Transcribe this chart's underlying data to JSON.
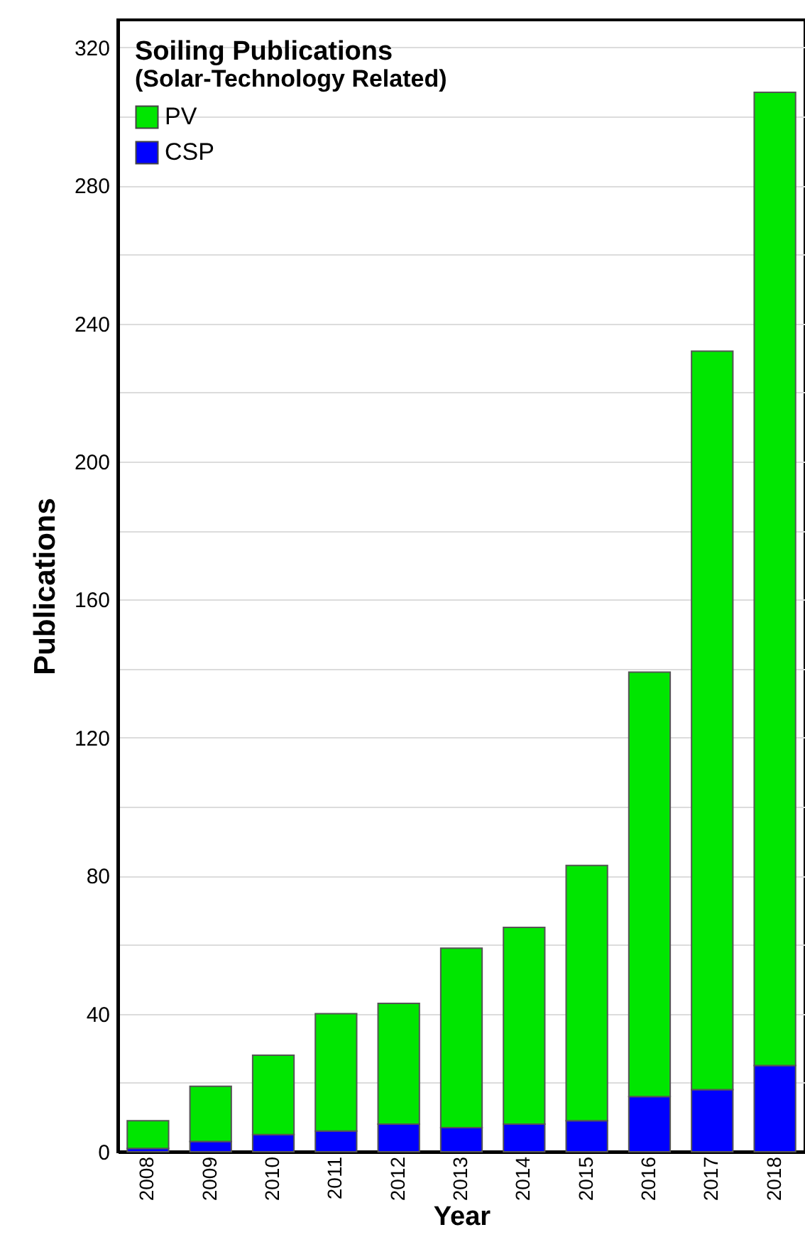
{
  "chart_data": {
    "type": "bar",
    "title": "Soiling Publications",
    "subtitle": "(Solar-Technology Related)",
    "xlabel": "Year",
    "ylabel": "Publications",
    "categories": [
      "2008",
      "2009",
      "2010",
      "2011",
      "2012",
      "2013",
      "2014",
      "2015",
      "2016",
      "2017",
      "2018"
    ],
    "stacked": true,
    "series": [
      {
        "name": "CSP",
        "color": "#0000ff",
        "values": [
          1,
          3,
          5,
          6,
          8,
          7,
          8,
          9,
          16,
          18,
          25
        ]
      },
      {
        "name": "PV",
        "color": "#00e600",
        "values": [
          8,
          16,
          23,
          34,
          35,
          52,
          57,
          74,
          123,
          214,
          282
        ]
      }
    ],
    "ylim": [
      0,
      328
    ],
    "yticks": [
      0,
      {
        "value": 20,
        "label": null
      },
      40,
      {
        "value": 60,
        "label": null
      },
      80,
      {
        "value": 100,
        "label": null
      },
      120,
      {
        "value": 140,
        "label": null
      },
      160,
      {
        "value": 180,
        "label": null
      },
      200,
      {
        "value": 220,
        "label": null
      },
      240,
      {
        "value": 260,
        "label": null
      },
      280,
      {
        "value": 300,
        "label": null
      },
      320
    ],
    "grid": "y",
    "legend": "top left"
  }
}
